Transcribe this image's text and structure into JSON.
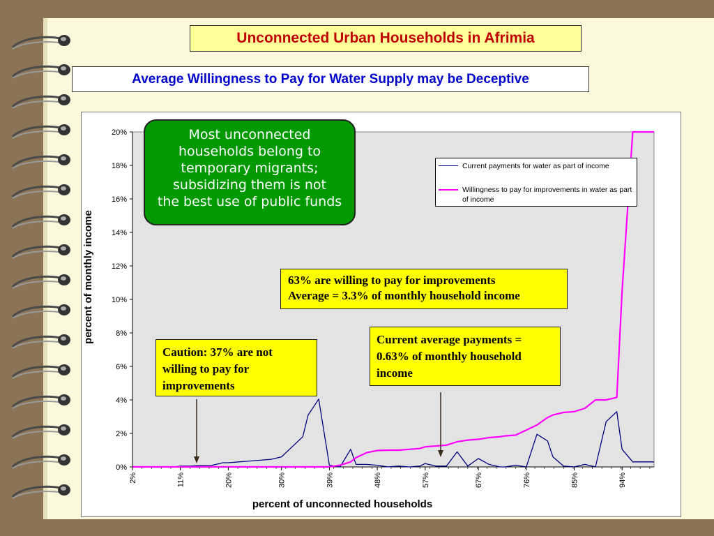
{
  "header": {
    "title": "Unconnected Urban Households in Afrimia",
    "subtitle": "Average Willingness to Pay for Water Supply may be Deceptive"
  },
  "colors": {
    "background": "#8b7355",
    "page": "#fbf8dc",
    "title_text": "#c00000",
    "subtitle_text": "#0000cc",
    "plot_area": "#e3e3e3",
    "series_current": "#000080",
    "series_willingness": "#ff00ff",
    "callout_green": "#009900",
    "note_yellow": "#ffff00"
  },
  "callouts": {
    "green_lines": [
      "Most unconnected",
      "households belong to",
      "temporary migrants;",
      "subsidizing them is not",
      "the best use of public funds"
    ],
    "note_63_lines": [
      "63% are willing to pay for improvements",
      "Average = 3.3% of monthly household income"
    ],
    "caution_lines": [
      "Caution: 37% are not",
      "willing to pay for",
      "improvements"
    ],
    "current_lines": [
      "Current average payments =",
      "0.63% of monthly household",
      "income"
    ]
  },
  "chart_data": {
    "type": "line",
    "xlabel": "percent of unconnected households",
    "ylabel": "percent of monthly income",
    "ylim": [
      0,
      20
    ],
    "y_ticks": [
      "0%",
      "2%",
      "4%",
      "6%",
      "8%",
      "10%",
      "12%",
      "14%",
      "16%",
      "18%",
      "20%"
    ],
    "x_ticks": [
      "2%",
      "11%",
      "20%",
      "30%",
      "39%",
      "48%",
      "57%",
      "67%",
      "76%",
      "85%",
      "94%"
    ],
    "x_tick_values": [
      2,
      11,
      20,
      30,
      39,
      48,
      57,
      67,
      76,
      85,
      94
    ],
    "xlim": [
      2,
      100
    ],
    "grid": false,
    "legend_position": "top-right",
    "series": [
      {
        "name": "Current payments for water as part of income",
        "color": "#000080",
        "x": [
          2,
          4,
          6,
          8,
          10,
          11,
          13,
          15,
          17,
          19,
          20,
          22,
          24,
          26,
          28,
          30,
          32,
          34,
          35,
          37,
          39,
          41,
          43,
          44,
          46,
          48,
          50,
          52,
          54,
          56,
          57,
          59,
          61,
          63,
          65,
          67,
          69,
          71,
          72,
          74,
          76,
          78,
          80,
          81,
          83,
          85,
          87,
          89,
          91,
          93,
          94,
          96,
          98,
          100
        ],
        "y": [
          0,
          0,
          0,
          0,
          0,
          0.05,
          0.05,
          0.1,
          0.1,
          0.25,
          0.25,
          0.3,
          0.35,
          0.4,
          0.45,
          0.6,
          1.2,
          1.8,
          3.1,
          4.05,
          0.1,
          0,
          1.05,
          0.15,
          0.15,
          0.1,
          0,
          0.05,
          0,
          0.05,
          0.2,
          0.05,
          0.05,
          0.9,
          0.05,
          0.5,
          0.15,
          0,
          0,
          0.1,
          0,
          1.95,
          1.55,
          0.6,
          0.05,
          0,
          0.15,
          0,
          2.7,
          3.3,
          1.05,
          0.3,
          0.3,
          0.3
        ]
      },
      {
        "name": "Willingness to pay for improvements in water as part of income",
        "color": "#ff00ff",
        "x": [
          2,
          10,
          20,
          30,
          37,
          39,
          41,
          43,
          44,
          46,
          48,
          50,
          52,
          54,
          56,
          57,
          59,
          61,
          63,
          65,
          67,
          69,
          71,
          72,
          74,
          76,
          78,
          80,
          81,
          83,
          85,
          87,
          89,
          91,
          93,
          94,
          96,
          98,
          100
        ],
        "y": [
          0,
          0,
          0,
          0,
          0,
          0,
          0.1,
          0.3,
          0.55,
          0.85,
          0.98,
          1.0,
          1.0,
          1.05,
          1.1,
          1.2,
          1.25,
          1.3,
          1.5,
          1.6,
          1.65,
          1.75,
          1.8,
          1.85,
          1.9,
          2.2,
          2.5,
          2.95,
          3.1,
          3.25,
          3.3,
          3.5,
          4.0,
          4.0,
          4.15,
          10.5,
          20,
          20,
          20
        ]
      }
    ]
  },
  "legend": {
    "items": [
      {
        "label": "Current payments for water as part of income"
      },
      {
        "label": "Willingness to pay for improvements in water as part of income"
      }
    ]
  }
}
